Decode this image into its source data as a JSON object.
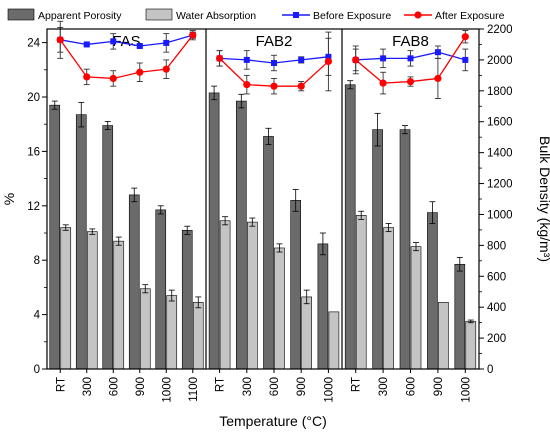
{
  "chart_data": {
    "type": "bar",
    "xlabel": "Temperature (°C)",
    "ylabel": "%",
    "y2label": "Bulk Density (kg/m³)",
    "ylim": [
      0,
      25
    ],
    "y2lim": [
      0,
      2200
    ],
    "yticks": [
      "0",
      "4",
      "8",
      "12",
      "16",
      "20",
      "24"
    ],
    "y2ticks": [
      "0",
      "200",
      "400",
      "600",
      "800",
      "1000",
      "1200",
      "1400",
      "1600",
      "1800",
      "2000",
      "2200"
    ],
    "legend": {
      "placement": "top",
      "entries": [
        {
          "label": "Apparent Porosity",
          "kind": "bar",
          "color": "#6b6b6b"
        },
        {
          "label": "Water Absorption",
          "kind": "bar",
          "color": "#c4c4c4"
        },
        {
          "label": "Before Exposure",
          "kind": "line",
          "color": "#1a1aff",
          "marker": "square"
        },
        {
          "label": "After Exposure",
          "kind": "line",
          "color": "#ff0000",
          "marker": "circle"
        }
      ]
    },
    "panels": [
      {
        "title": "FAS",
        "categories": [
          "RT",
          "300",
          "600",
          "900",
          "1000",
          "1100"
        ],
        "apparent_porosity": [
          19.4,
          18.7,
          17.9,
          12.8,
          11.7,
          10.2
        ],
        "apparent_porosity_err": [
          0.3,
          0.9,
          0.3,
          0.5,
          0.3,
          0.3
        ],
        "water_absorption": [
          10.4,
          10.1,
          9.4,
          5.9,
          5.4,
          4.9
        ],
        "water_absorption_err": [
          0.2,
          0.2,
          0.3,
          0.3,
          0.4,
          0.4
        ],
        "before_exposure": [
          2130,
          2100,
          2120,
          2090,
          2110,
          2160
        ],
        "before_exposure_err": [
          80,
          10,
          50,
          10,
          60,
          30
        ],
        "after_exposure": [
          2130,
          1890,
          1880,
          1920,
          1940,
          2160
        ],
        "after_exposure_err": [
          120,
          50,
          50,
          60,
          60,
          20
        ]
      },
      {
        "title": "FAB2",
        "categories": [
          "RT",
          "300",
          "600",
          "900",
          "1000"
        ],
        "apparent_porosity": [
          20.3,
          19.7,
          17.1,
          12.4,
          9.2
        ],
        "apparent_porosity_err": [
          0.5,
          0.5,
          0.6,
          0.8,
          0.8
        ],
        "water_absorption": [
          10.9,
          10.8,
          8.9,
          5.3,
          4.2
        ],
        "water_absorption_err": [
          0.3,
          0.3,
          0.3,
          0.5,
          0
        ],
        "before_exposure": [
          2010,
          2000,
          1980,
          2000,
          2020
        ],
        "before_exposure_err": [
          50,
          60,
          50,
          20,
          120
        ],
        "after_exposure": [
          2010,
          1840,
          1830,
          1830,
          1990
        ],
        "after_exposure_err": [
          50,
          60,
          50,
          30,
          190
        ]
      },
      {
        "title": "FAB8",
        "categories": [
          "RT",
          "300",
          "600",
          "900",
          "1000"
        ],
        "apparent_porosity": [
          20.9,
          17.6,
          17.6,
          11.5,
          7.7
        ],
        "apparent_porosity_err": [
          0.3,
          1.2,
          0.3,
          0.8,
          0.5
        ],
        "water_absorption": [
          11.3,
          10.4,
          9.0,
          4.9,
          3.5
        ],
        "water_absorption_err": [
          0.3,
          0.3,
          0.3,
          0,
          0.1
        ],
        "before_exposure": [
          2000,
          2010,
          2010,
          2050,
          2000
        ],
        "before_exposure_err": [
          70,
          60,
          50,
          40,
          70
        ],
        "after_exposure": [
          2000,
          1850,
          1860,
          1880,
          2150
        ],
        "after_exposure_err": [
          90,
          70,
          30,
          130,
          40
        ]
      }
    ]
  }
}
